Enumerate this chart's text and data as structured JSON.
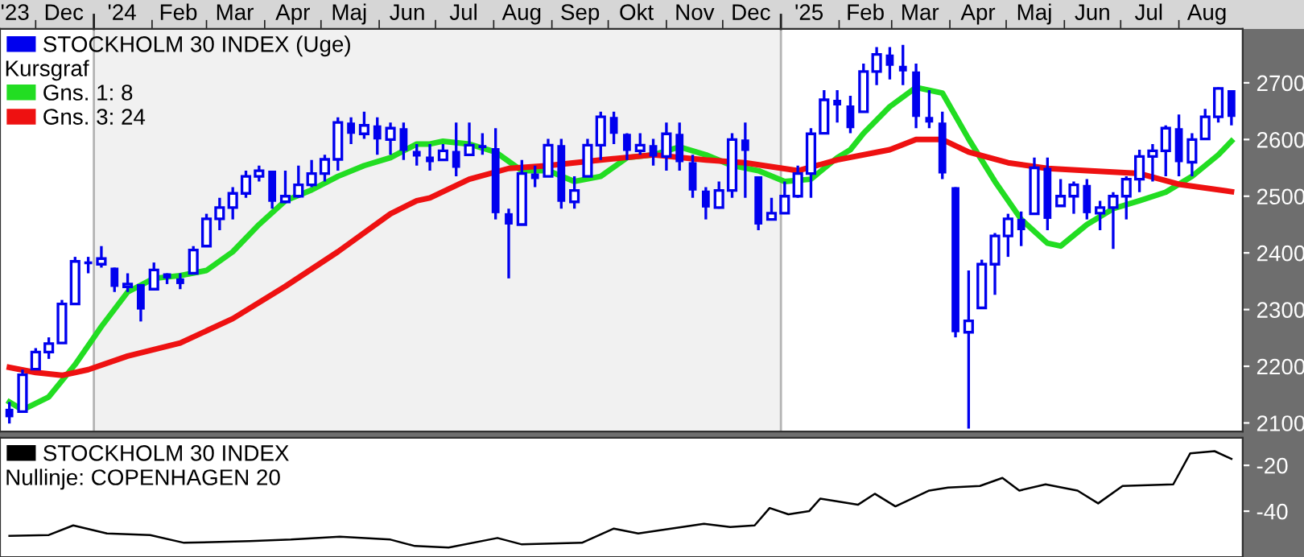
{
  "chart_data": [
    {
      "type": "candlestick",
      "legend": "top left",
      "legend_title": "Kursgraf",
      "x": [
        "2023-11-17",
        "2023-11-24",
        "2023-12-01",
        "2023-12-08",
        "2023-12-15",
        "2023-12-22",
        "2023-12-29",
        "2024-01-05",
        "2024-01-12",
        "2024-01-19",
        "2024-01-26",
        "2024-02-02",
        "2024-02-09",
        "2024-02-16",
        "2024-02-23",
        "2024-03-01",
        "2024-03-08",
        "2024-03-15",
        "2024-03-22",
        "2024-03-29",
        "2024-04-05",
        "2024-04-12",
        "2024-04-19",
        "2024-04-26",
        "2024-05-03",
        "2024-05-10",
        "2024-05-17",
        "2024-05-24",
        "2024-05-31",
        "2024-06-07",
        "2024-06-14",
        "2024-06-21",
        "2024-06-28",
        "2024-07-05",
        "2024-07-12",
        "2024-07-19",
        "2024-07-26",
        "2024-08-02",
        "2024-08-09",
        "2024-08-16",
        "2024-08-23",
        "2024-08-30",
        "2024-09-06",
        "2024-09-13",
        "2024-09-20",
        "2024-09-27",
        "2024-10-04",
        "2024-10-11",
        "2024-10-18",
        "2024-10-25",
        "2024-11-01",
        "2024-11-08",
        "2024-11-15",
        "2024-11-22",
        "2024-11-29",
        "2024-12-06",
        "2024-12-13",
        "2024-12-20",
        "2024-12-27",
        "2025-01-03",
        "2025-01-10",
        "2025-01-17",
        "2025-01-24",
        "2025-01-31",
        "2025-02-07",
        "2025-02-14",
        "2025-02-21",
        "2025-02-28",
        "2025-03-07",
        "2025-03-14",
        "2025-03-21",
        "2025-03-28",
        "2025-04-04",
        "2025-04-11",
        "2025-04-18",
        "2025-04-25",
        "2025-05-02",
        "2025-05-09",
        "2025-05-16",
        "2025-05-23",
        "2025-05-30",
        "2025-06-06",
        "2025-06-13",
        "2025-06-20",
        "2025-06-27",
        "2025-07-04",
        "2025-07-11",
        "2025-07-18",
        "2025-07-25",
        "2025-08-01",
        "2025-08-08",
        "2025-08-15",
        "2025-08-22",
        "2025-08-29"
      ],
      "series": [
        {
          "type": "candlestick",
          "name": "STOCKHOLM 30 INDEX (Uge)",
          "color": "#0000ee",
          "ohlc": [
            [
              2125,
              2137,
              2099,
              2110
            ],
            [
              2120,
              2194,
              2118,
              2185
            ],
            [
              2195,
              2232,
              2194,
              2225
            ],
            [
              2225,
              2251,
              2213,
              2240
            ],
            [
              2241,
              2317,
              2241,
              2310
            ],
            [
              2310,
              2393,
              2308,
              2385
            ],
            [
              2385,
              2393,
              2364,
              2380
            ],
            [
              2380,
              2412,
              2374,
              2390
            ],
            [
              2374,
              2374,
              2331,
              2340
            ],
            [
              2340,
              2364,
              2331,
              2345
            ],
            [
              2345,
              2345,
              2279,
              2300
            ],
            [
              2336,
              2383,
              2336,
              2370
            ],
            [
              2364,
              2364,
              2345,
              2355
            ],
            [
              2355,
              2364,
              2336,
              2345
            ],
            [
              2364,
              2412,
              2364,
              2405
            ],
            [
              2412,
              2469,
              2412,
              2460
            ],
            [
              2460,
              2497,
              2440,
              2480
            ],
            [
              2480,
              2516,
              2459,
              2505
            ],
            [
              2505,
              2545,
              2497,
              2535
            ],
            [
              2535,
              2554,
              2526,
              2545
            ],
            [
              2545,
              2545,
              2478,
              2490
            ],
            [
              2490,
              2545,
              2488,
              2500
            ],
            [
              2500,
              2554,
              2497,
              2520
            ],
            [
              2520,
              2564,
              2516,
              2540
            ],
            [
              2540,
              2573,
              2526,
              2565
            ],
            [
              2565,
              2639,
              2545,
              2630
            ],
            [
              2630,
              2639,
              2592,
              2610
            ],
            [
              2610,
              2649,
              2601,
              2625
            ],
            [
              2625,
              2639,
              2573,
              2600
            ],
            [
              2600,
              2630,
              2573,
              2620
            ],
            [
              2620,
              2630,
              2564,
              2580
            ],
            [
              2580,
              2592,
              2554,
              2570
            ],
            [
              2570,
              2592,
              2545,
              2560
            ],
            [
              2564,
              2592,
              2564,
              2580
            ],
            [
              2580,
              2630,
              2535,
              2550
            ],
            [
              2573,
              2630,
              2573,
              2590
            ],
            [
              2590,
              2611,
              2573,
              2585
            ],
            [
              2585,
              2620,
              2459,
              2470
            ],
            [
              2470,
              2478,
              2355,
              2450
            ],
            [
              2450,
              2564,
              2450,
              2540
            ],
            [
              2540,
              2554,
              2516,
              2530
            ],
            [
              2535,
              2601,
              2535,
              2590
            ],
            [
              2590,
              2601,
              2478,
              2490
            ],
            [
              2490,
              2535,
              2478,
              2510
            ],
            [
              2535,
              2601,
              2535,
              2590
            ],
            [
              2590,
              2649,
              2564,
              2640
            ],
            [
              2640,
              2649,
              2592,
              2610
            ],
            [
              2610,
              2611,
              2564,
              2580
            ],
            [
              2580,
              2611,
              2573,
              2590
            ],
            [
              2590,
              2601,
              2554,
              2570
            ],
            [
              2570,
              2630,
              2545,
              2610
            ],
            [
              2610,
              2630,
              2545,
              2560
            ],
            [
              2560,
              2573,
              2497,
              2510
            ],
            [
              2510,
              2516,
              2459,
              2480
            ],
            [
              2480,
              2526,
              2478,
              2510
            ],
            [
              2510,
              2611,
              2497,
              2600
            ],
            [
              2600,
              2630,
              2497,
              2580
            ],
            [
              2535,
              2535,
              2440,
              2450
            ],
            [
              2459,
              2497,
              2459,
              2470
            ],
            [
              2470,
              2526,
              2469,
              2500
            ],
            [
              2500,
              2554,
              2497,
              2540
            ],
            [
              2540,
              2620,
              2497,
              2610
            ],
            [
              2611,
              2687,
              2611,
              2670
            ],
            [
              2670,
              2687,
              2630,
              2660
            ],
            [
              2660,
              2677,
              2611,
              2620
            ],
            [
              2649,
              2734,
              2649,
              2720
            ],
            [
              2720,
              2763,
              2696,
              2750
            ],
            [
              2750,
              2763,
              2706,
              2730
            ],
            [
              2730,
              2767,
              2696,
              2720
            ],
            [
              2720,
              2734,
              2620,
              2640
            ],
            [
              2640,
              2687,
              2620,
              2630
            ],
            [
              2630,
              2649,
              2530,
              2540
            ],
            [
              2516,
              2516,
              2251,
              2260
            ],
            [
              2260,
              2369,
              2090,
              2280
            ],
            [
              2303,
              2388,
              2303,
              2380
            ],
            [
              2380,
              2435,
              2326,
              2430
            ],
            [
              2430,
              2469,
              2393,
              2460
            ],
            [
              2460,
              2473,
              2412,
              2440
            ],
            [
              2469,
              2568,
              2469,
              2550
            ],
            [
              2550,
              2568,
              2440,
              2460
            ],
            [
              2483,
              2530,
              2483,
              2500
            ],
            [
              2500,
              2526,
              2469,
              2520
            ],
            [
              2520,
              2530,
              2459,
              2470
            ],
            [
              2470,
              2492,
              2440,
              2480
            ],
            [
              2480,
              2507,
              2407,
              2500
            ],
            [
              2500,
              2535,
              2459,
              2530
            ],
            [
              2530,
              2582,
              2507,
              2570
            ],
            [
              2570,
              2592,
              2526,
              2580
            ],
            [
              2580,
              2625,
              2535,
              2620
            ],
            [
              2620,
              2644,
              2535,
              2560
            ],
            [
              2560,
              2611,
              2535,
              2600
            ],
            [
              2601,
              2654,
              2601,
              2640
            ],
            [
              2640,
              2692,
              2630,
              2690
            ],
            [
              2687,
              2687,
              2625,
              2640
            ]
          ]
        },
        {
          "type": "line",
          "name": "Gns. 1: 8",
          "color": "#22dd22",
          "x": [
            "2023-11-17",
            "2023-11-24",
            "2023-12-08",
            "2023-12-22",
            "2024-01-05",
            "2024-01-19",
            "2024-02-02",
            "2024-02-16",
            "2024-03-01",
            "2024-03-15",
            "2024-03-29",
            "2024-04-12",
            "2024-04-26",
            "2024-05-10",
            "2024-05-24",
            "2024-06-07",
            "2024-06-21",
            "2024-06-28",
            "2024-07-05",
            "2024-07-19",
            "2024-08-02",
            "2024-08-16",
            "2024-08-30",
            "2024-09-13",
            "2024-09-27",
            "2024-10-11",
            "2024-10-25",
            "2024-11-08",
            "2024-11-22",
            "2024-12-06",
            "2024-12-20",
            "2025-01-03",
            "2025-01-17",
            "2025-01-31",
            "2025-02-07",
            "2025-02-14",
            "2025-02-28",
            "2025-03-14",
            "2025-03-28",
            "2025-04-11",
            "2025-04-25",
            "2025-05-09",
            "2025-05-23",
            "2025-05-30",
            "2025-06-13",
            "2025-06-27",
            "2025-07-11",
            "2025-07-25",
            "2025-08-08",
            "2025-08-22",
            "2025-08-29"
          ],
          "values": [
            2137,
            2123,
            2146,
            2203,
            2270,
            2331,
            2355,
            2360,
            2369,
            2402,
            2450,
            2492,
            2511,
            2535,
            2554,
            2568,
            2592,
            2592,
            2597,
            2592,
            2578,
            2545,
            2545,
            2526,
            2535,
            2568,
            2573,
            2587,
            2573,
            2554,
            2545,
            2526,
            2530,
            2568,
            2582,
            2611,
            2658,
            2692,
            2682,
            2601,
            2526,
            2459,
            2417,
            2412,
            2450,
            2478,
            2492,
            2507,
            2535,
            2573,
            2597
          ]
        },
        {
          "type": "line",
          "name": "Gns. 3: 24",
          "color": "#ee1111",
          "x": [
            "2023-11-17",
            "2023-12-01",
            "2023-12-15",
            "2023-12-29",
            "2024-01-19",
            "2024-02-16",
            "2024-03-15",
            "2024-04-12",
            "2024-05-10",
            "2024-06-07",
            "2024-06-21",
            "2024-06-28",
            "2024-07-19",
            "2024-08-09",
            "2024-08-30",
            "2024-09-27",
            "2024-10-25",
            "2024-11-22",
            "2024-12-13",
            "2025-01-10",
            "2025-01-31",
            "2025-02-28",
            "2025-03-14",
            "2025-03-28",
            "2025-04-11",
            "2025-05-02",
            "2025-05-23",
            "2025-06-13",
            "2025-07-11",
            "2025-08-01",
            "2025-08-29"
          ],
          "values": [
            2198,
            2189,
            2184,
            2194,
            2218,
            2241,
            2284,
            2341,
            2402,
            2469,
            2492,
            2497,
            2530,
            2549,
            2554,
            2564,
            2573,
            2564,
            2559,
            2545,
            2564,
            2582,
            2600,
            2600,
            2578,
            2559,
            2549,
            2545,
            2540,
            2521,
            2508
          ]
        }
      ],
      "xlim": [
        "2023-11-12",
        "2025-09-04"
      ],
      "xticks": [
        {
          "value": "2023-11-20",
          "label": "'23"
        },
        {
          "value": "2023-12-16",
          "label": "Dec"
        },
        {
          "value": "2024-01-16",
          "label": "'24"
        },
        {
          "value": "2024-02-15",
          "label": "Feb"
        },
        {
          "value": "2024-03-16",
          "label": "Mar"
        },
        {
          "value": "2024-04-16",
          "label": "Apr"
        },
        {
          "value": "2024-05-16",
          "label": "Maj"
        },
        {
          "value": "2024-06-16",
          "label": "Jun"
        },
        {
          "value": "2024-07-16",
          "label": "Jul"
        },
        {
          "value": "2024-08-16",
          "label": "Aug"
        },
        {
          "value": "2024-09-16",
          "label": "Sep"
        },
        {
          "value": "2024-10-16",
          "label": "Okt"
        },
        {
          "value": "2024-11-16",
          "label": "Nov"
        },
        {
          "value": "2024-12-16",
          "label": "Dec"
        },
        {
          "value": "2025-01-16",
          "label": "'25"
        },
        {
          "value": "2025-02-15",
          "label": "Feb"
        },
        {
          "value": "2025-03-16",
          "label": "Mar"
        },
        {
          "value": "2025-04-16",
          "label": "Apr"
        },
        {
          "value": "2025-05-16",
          "label": "Maj"
        },
        {
          "value": "2025-06-16",
          "label": "Jun"
        },
        {
          "value": "2025-07-16",
          "label": "Jul"
        },
        {
          "value": "2025-08-16",
          "label": "Aug"
        },
        {
          "value": "2023-12-01",
          "label": null
        },
        {
          "value": "2024-02-01",
          "label": null
        },
        {
          "value": "2024-03-01",
          "label": null
        },
        {
          "value": "2024-04-01",
          "label": null
        },
        {
          "value": "2024-05-01",
          "label": null
        },
        {
          "value": "2024-06-01",
          "label": null
        },
        {
          "value": "2024-07-01",
          "label": null
        },
        {
          "value": "2024-08-01",
          "label": null
        },
        {
          "value": "2024-09-01",
          "label": null
        },
        {
          "value": "2024-10-01",
          "label": null
        },
        {
          "value": "2024-11-01",
          "label": null
        },
        {
          "value": "2024-12-01",
          "label": null
        },
        {
          "value": "2025-02-01",
          "label": null
        },
        {
          "value": "2025-03-01",
          "label": null
        },
        {
          "value": "2025-04-01",
          "label": null
        },
        {
          "value": "2025-05-01",
          "label": null
        },
        {
          "value": "2025-06-01",
          "label": null
        },
        {
          "value": "2025-07-01",
          "label": null
        },
        {
          "value": "2025-08-01",
          "label": null
        }
      ],
      "ylim": [
        2085,
        2795
      ],
      "yticks": [
        2100,
        2200,
        2300,
        2400,
        2500,
        2600,
        2700
      ],
      "ref_lines": [
        {
          "axis": "x",
          "value": "2024-01-01",
          "color": "#b4b4b4"
        },
        {
          "axis": "x",
          "value": "2025-01-01",
          "color": "#b4b4b4"
        }
      ],
      "bands": [
        {
          "axis": "x",
          "from": "2024-01-01",
          "to": "2025-01-01",
          "color": "#f1f1f1"
        }
      ]
    },
    {
      "type": "line",
      "legend": "top left",
      "tick_labels": "y",
      "annotations": [
        "Nullinje: COPENHAGEN 20"
      ],
      "series": [
        {
          "name": "STOCKHOLM 30 INDEX",
          "color": "#000000",
          "x": [
            "2023-11-17",
            "2023-12-08",
            "2023-12-21",
            "2024-01-08",
            "2024-01-31",
            "2024-02-18",
            "2024-03-24",
            "2024-04-15",
            "2024-05-11",
            "2024-06-07",
            "2024-06-20",
            "2024-07-08",
            "2024-08-03",
            "2024-08-16",
            "2024-09-17",
            "2024-10-04",
            "2024-10-17",
            "2024-11-21",
            "2024-12-05",
            "2024-12-18",
            "2024-12-26",
            "2025-01-05",
            "2025-01-16",
            "2025-01-22",
            "2025-02-11",
            "2025-02-20",
            "2025-03-03",
            "2025-03-21",
            "2025-03-31",
            "2025-04-17",
            "2025-04-29",
            "2025-05-08",
            "2025-05-22",
            "2025-06-08",
            "2025-06-19",
            "2025-07-02",
            "2025-07-29",
            "2025-08-07",
            "2025-08-20",
            "2025-08-29"
          ],
          "values": [
            -50.8,
            -50.4,
            -46.2,
            -49.7,
            -50.4,
            -53.8,
            -53.1,
            -52.4,
            -51.1,
            -52.4,
            -55.2,
            -55.9,
            -51.7,
            -54.5,
            -53.8,
            -47.6,
            -49.7,
            -45.5,
            -46.9,
            -46.2,
            -38.6,
            -41.4,
            -40,
            -34.5,
            -37.2,
            -32.4,
            -37.9,
            -31,
            -29.7,
            -29,
            -25.5,
            -31,
            -28.3,
            -31,
            -36.6,
            -29,
            -28.3,
            -14.8,
            -13.8,
            -17.2
          ]
        }
      ],
      "xlim": [
        "2023-11-12",
        "2025-09-04"
      ],
      "ylim": [
        -60,
        -8
      ],
      "yticks": [
        -20,
        -40
      ]
    }
  ]
}
